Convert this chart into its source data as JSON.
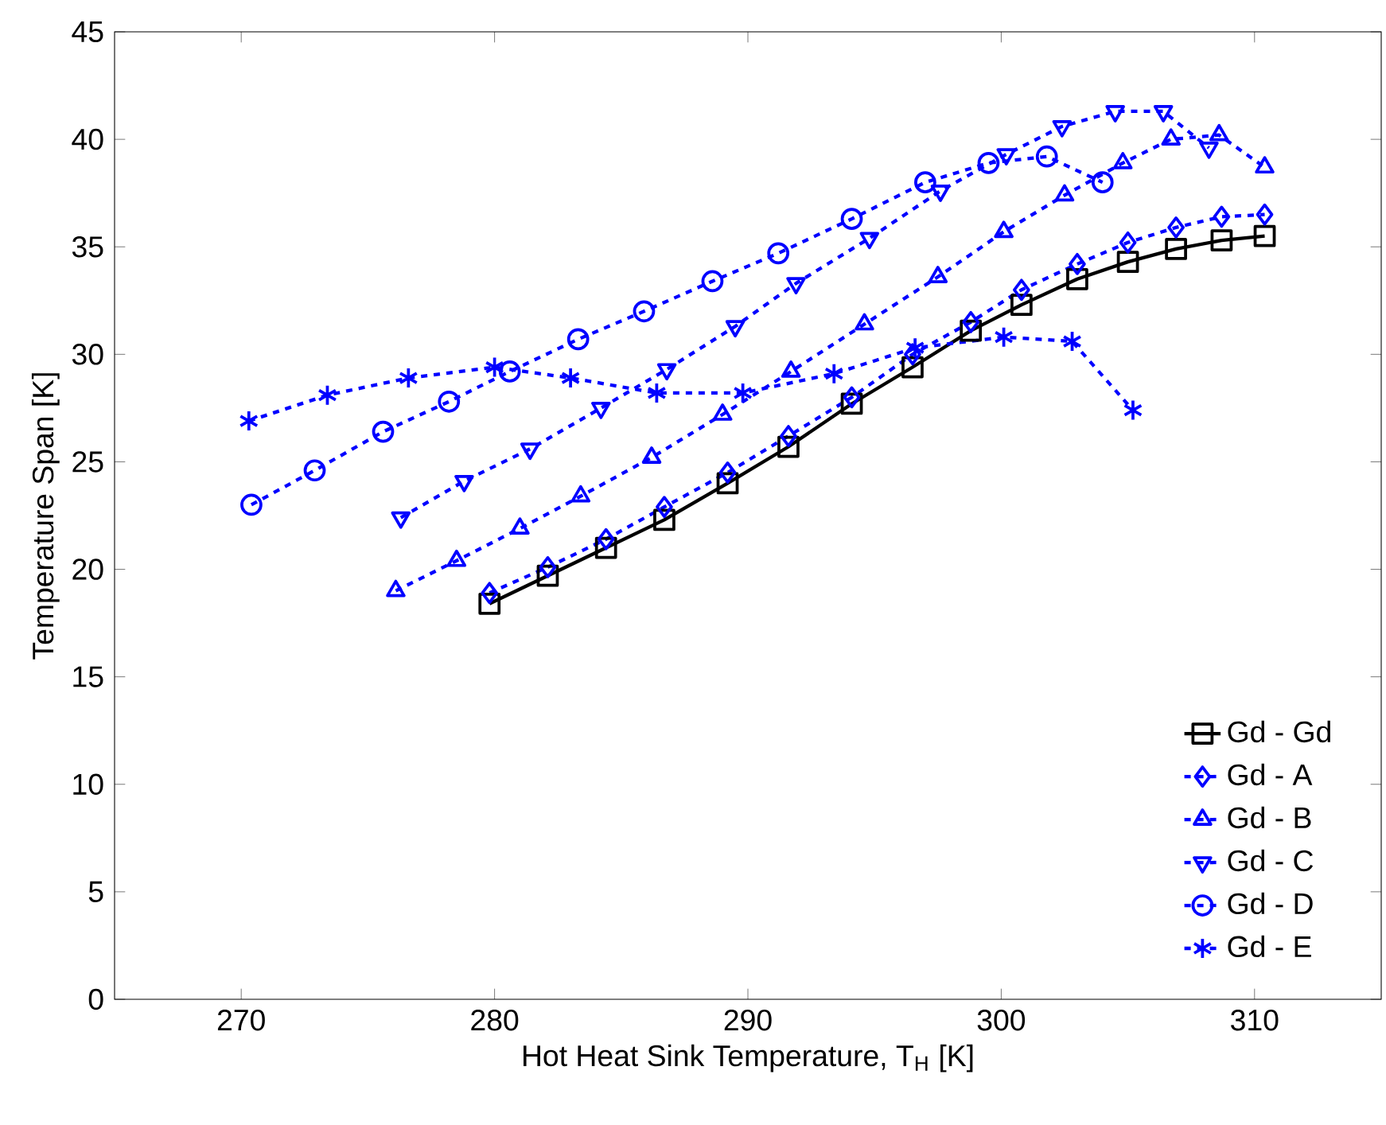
{
  "chart_data": {
    "type": "line",
    "xlabel": "Hot Heat Sink Temperature, T$_{H}$ [K]",
    "ylabel": "Temperature Span [K]",
    "xlim": [
      265,
      315
    ],
    "ylim": [
      0,
      45
    ],
    "xticks": [
      270,
      280,
      290,
      300,
      310
    ],
    "yticks": [
      0,
      5,
      10,
      15,
      20,
      25,
      30,
      35,
      40,
      45
    ],
    "grid": false,
    "legend": "bottom right",
    "series": [
      {
        "name": "Gd - Gd",
        "color": "#000000",
        "marker": "square",
        "line_style": "solid",
        "x": [
          279.8,
          282.1,
          284.4,
          286.7,
          289.2,
          291.6,
          294.1,
          296.5,
          298.8,
          300.8,
          303.0,
          305.0,
          306.9,
          308.7,
          310.4
        ],
        "values": [
          18.4,
          19.7,
          21.0,
          22.3,
          24.0,
          25.7,
          27.7,
          29.4,
          31.1,
          32.3,
          33.5,
          34.3,
          34.9,
          35.3,
          35.5
        ]
      },
      {
        "name": "Gd - A",
        "color": "#0000ff",
        "marker": "diamond",
        "line_style": "dashed",
        "x": [
          279.8,
          282.1,
          284.4,
          286.7,
          289.2,
          291.6,
          294.1,
          296.5,
          298.8,
          300.8,
          303.0,
          305.0,
          306.9,
          308.7,
          310.4
        ],
        "values": [
          18.9,
          20.1,
          21.4,
          22.9,
          24.5,
          26.2,
          28.0,
          30.0,
          31.5,
          33.0,
          34.2,
          35.2,
          35.9,
          36.4,
          36.5
        ]
      },
      {
        "name": "Gd - B",
        "color": "#0000ff",
        "marker": "triangle",
        "line_style": "dashed",
        "x": [
          276.1,
          278.5,
          281.0,
          283.4,
          286.2,
          289.0,
          291.7,
          294.6,
          297.5,
          300.1,
          302.5,
          304.8,
          306.7,
          308.6,
          310.4
        ],
        "values": [
          19.0,
          20.4,
          21.9,
          23.4,
          25.2,
          27.2,
          29.2,
          31.4,
          33.6,
          35.7,
          37.4,
          38.9,
          40.0,
          40.2,
          38.7
        ]
      },
      {
        "name": "Gd - C",
        "color": "#0000ff",
        "marker": "triangle_down",
        "line_style": "dashed",
        "x": [
          276.3,
          278.8,
          281.4,
          284.2,
          286.8,
          289.5,
          291.9,
          294.8,
          297.6,
          300.2,
          302.4,
          304.5,
          306.4,
          308.2
        ],
        "values": [
          22.4,
          24.1,
          25.6,
          27.5,
          29.3,
          31.3,
          33.3,
          35.4,
          37.6,
          39.3,
          40.6,
          41.3,
          41.3,
          39.6
        ]
      },
      {
        "name": "Gd - D",
        "color": "#0000ff",
        "marker": "circle",
        "line_style": "dashed",
        "x": [
          270.4,
          272.9,
          275.6,
          278.2,
          280.6,
          283.3,
          285.9,
          288.6,
          291.2,
          294.1,
          297.0,
          299.5,
          301.8,
          304.0
        ],
        "values": [
          23.0,
          24.6,
          26.4,
          27.8,
          29.2,
          30.7,
          32.0,
          33.4,
          34.7,
          36.3,
          38.0,
          38.9,
          39.2,
          38.0
        ]
      },
      {
        "name": "Gd - E",
        "color": "#0000ff",
        "marker": "cross",
        "line_style": "dashed",
        "x": [
          270.3,
          273.4,
          276.6,
          280.0,
          283.0,
          286.4,
          289.8,
          293.4,
          296.6,
          300.1,
          302.8,
          305.2
        ],
        "values": [
          26.9,
          28.1,
          28.9,
          29.4,
          28.9,
          28.2,
          28.2,
          29.1,
          30.3,
          30.8,
          30.6,
          27.4
        ]
      }
    ]
  }
}
